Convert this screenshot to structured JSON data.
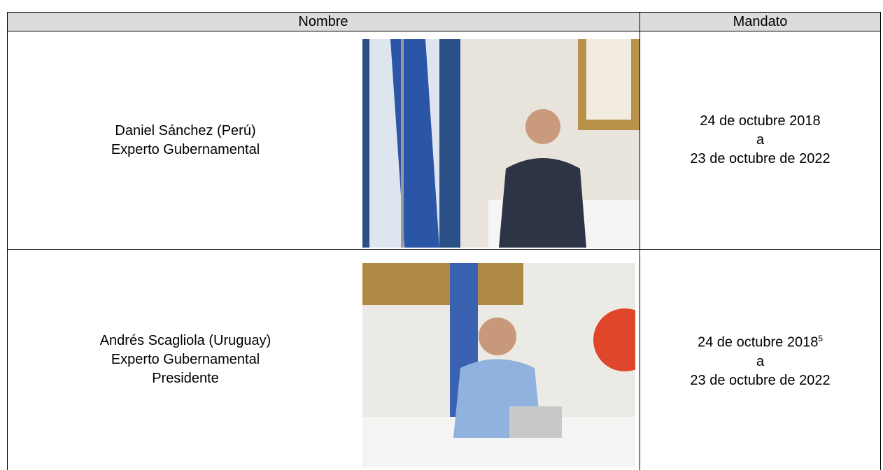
{
  "table": {
    "header": [
      "Nombre",
      "Mandato"
    ],
    "rows": [
      {
        "name": [
          "Daniel Sánchez (Perú)",
          "Experto Gubernamental"
        ],
        "mandate": {
          "start": "24 de octubre 2018",
          "sep": "a",
          "end": "23 de octubre de 2022"
        }
      },
      {
        "name": [
          "Andrés Scagliola (Uruguay)",
          "Experto Gubernamental",
          "Presidente"
        ],
        "mandate": {
          "start": "24 de octubre 2018",
          "footnote": "5",
          "sep": "a",
          "end": "23 de octubre de 2022"
        }
      }
    ]
  }
}
